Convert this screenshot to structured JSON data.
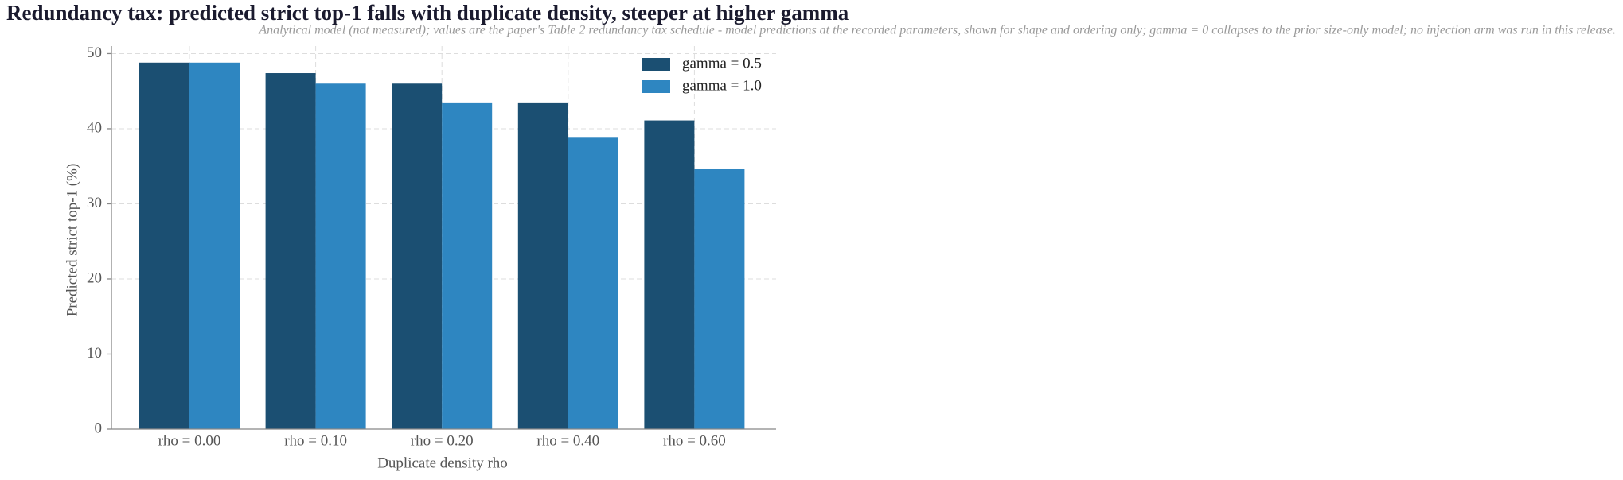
{
  "chart_data": {
    "type": "bar",
    "title": "Redundancy tax: predicted strict top-1 falls with duplicate density, steeper at higher gamma",
    "subtitle": "Analytical model (not measured); values are the paper's Table 2 redundancy tax schedule - model predictions at the recorded parameters, shown for shape and ordering only; gamma = 0 collapses to the prior size-only model; no injection arm was run in this release.",
    "x_label": "Duplicate density rho",
    "y_label": "Predicted strict top-1 (%)",
    "categories": [
      "rho = 0.00",
      "rho = 0.10",
      "rho = 0.20",
      "rho = 0.40",
      "rho = 0.60"
    ],
    "series": [
      {
        "name": "gamma = 0.5",
        "color": "#1b4f72",
        "values": [
          48.8,
          47.4,
          46.0,
          43.5,
          41.1
        ]
      },
      {
        "name": "gamma = 1.0",
        "color": "#2e86c1",
        "values": [
          48.8,
          46.0,
          43.5,
          38.8,
          34.6
        ]
      }
    ],
    "ylim": [
      0,
      51
    ],
    "yticks": [
      0,
      10,
      20,
      30,
      40,
      50
    ],
    "grid": true,
    "legend": "upper right"
  }
}
